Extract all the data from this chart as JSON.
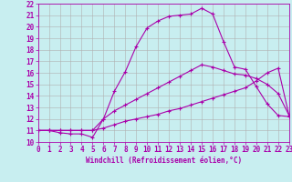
{
  "xlabel": "Windchill (Refroidissement éolien,°C)",
  "bg_color": "#c8eef0",
  "line_color": "#aa00aa",
  "grid_color": "#b0b0b0",
  "xmin": 0,
  "xmax": 23,
  "ymin": 10,
  "ymax": 22,
  "line1_x": [
    0,
    1,
    2,
    3,
    4,
    5,
    6,
    7,
    8,
    9,
    10,
    11,
    12,
    13,
    14,
    15,
    16,
    17,
    18,
    19,
    20,
    21,
    22,
    23
  ],
  "line1_y": [
    11.0,
    11.0,
    10.8,
    10.7,
    10.7,
    10.4,
    12.0,
    14.4,
    16.1,
    18.3,
    19.9,
    20.5,
    20.9,
    21.0,
    21.1,
    21.6,
    21.1,
    18.7,
    16.5,
    16.3,
    14.8,
    13.3,
    12.3,
    12.2
  ],
  "line2_x": [
    0,
    1,
    2,
    3,
    4,
    5,
    6,
    7,
    8,
    9,
    10,
    11,
    12,
    13,
    14,
    15,
    16,
    17,
    18,
    19,
    20,
    21,
    22,
    23
  ],
  "line2_y": [
    11.0,
    11.0,
    11.0,
    11.0,
    11.0,
    11.0,
    11.2,
    11.5,
    11.8,
    12.0,
    12.2,
    12.4,
    12.7,
    12.9,
    13.2,
    13.5,
    13.8,
    14.1,
    14.4,
    14.7,
    15.3,
    16.0,
    16.4,
    12.3
  ],
  "line3_x": [
    0,
    1,
    2,
    3,
    4,
    5,
    6,
    7,
    8,
    9,
    10,
    11,
    12,
    13,
    14,
    15,
    16,
    17,
    18,
    19,
    20,
    21,
    22,
    23
  ],
  "line3_y": [
    11.0,
    11.0,
    11.0,
    11.0,
    11.0,
    11.0,
    12.0,
    12.7,
    13.2,
    13.7,
    14.2,
    14.7,
    15.2,
    15.7,
    16.2,
    16.7,
    16.5,
    16.2,
    15.9,
    15.8,
    15.5,
    15.0,
    14.2,
    12.3
  ],
  "tick_fontsize": 5.5,
  "xlabel_fontsize": 5.5
}
